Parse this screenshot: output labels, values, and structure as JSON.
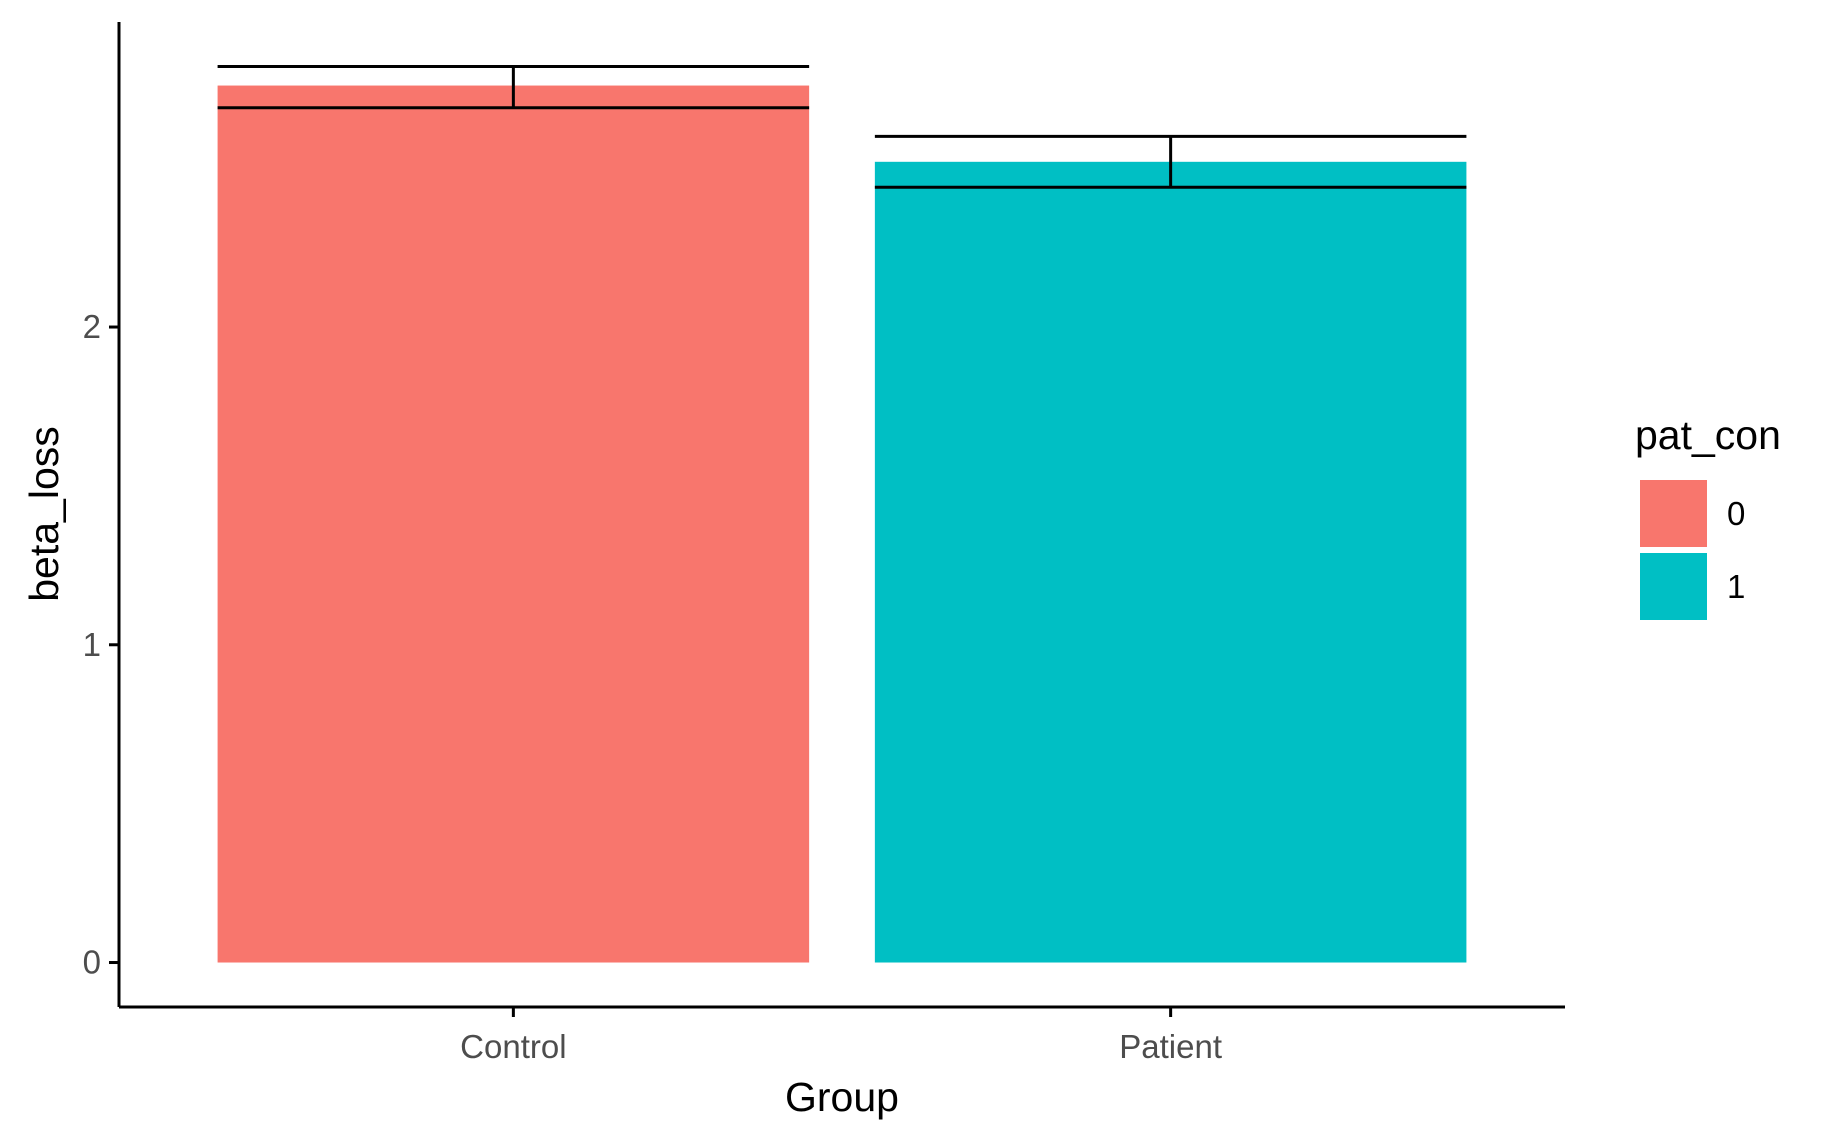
{
  "chart_data": {
    "type": "bar",
    "title": "",
    "xlabel": "Group",
    "ylabel": "beta_loss",
    "categories": [
      "Control",
      "Patient"
    ],
    "series": [
      {
        "group_value": "0",
        "category": "Control",
        "value": 2.76,
        "error": [
          2.69,
          2.82
        ],
        "color": "#F8766D"
      },
      {
        "group_value": "1",
        "category": "Patient",
        "value": 2.52,
        "error": [
          2.44,
          2.6
        ],
        "color": "#00BFC4"
      }
    ],
    "yticks": [
      0,
      1,
      2
    ],
    "ytick_labels": [
      "0",
      "1",
      "2"
    ],
    "ylim": [
      -0.14,
      2.96
    ],
    "legend": {
      "title": "pat_con",
      "position": "right",
      "entries": [
        {
          "label": "0",
          "color": "#F8766D"
        },
        {
          "label": "1",
          "color": "#00BFC4"
        }
      ]
    },
    "grid": false
  }
}
